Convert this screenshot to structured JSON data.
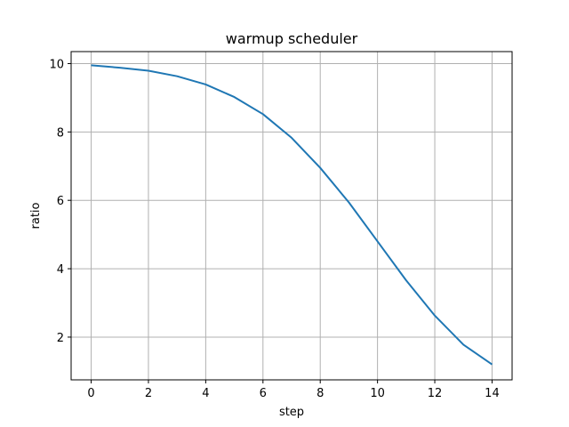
{
  "chart_data": {
    "type": "line",
    "title": "warmup scheduler",
    "xlabel": "step",
    "ylabel": "ratio",
    "xlim": [
      -0.7,
      14.7
    ],
    "ylim": [
      0.75,
      10.35
    ],
    "grid": true,
    "xticks": [
      0,
      2,
      4,
      6,
      8,
      10,
      12,
      14
    ],
    "yticks": [
      2,
      4,
      6,
      8,
      10
    ],
    "series": [
      {
        "color": "#1f77b4",
        "x": [
          0,
          1,
          2,
          3,
          4,
          5,
          6,
          7,
          8,
          9,
          10,
          11,
          12,
          13,
          14
        ],
        "y": [
          9.95,
          9.88,
          9.79,
          9.63,
          9.39,
          9.02,
          8.52,
          7.83,
          6.95,
          5.94,
          4.8,
          3.66,
          2.63,
          1.78,
          1.2
        ]
      }
    ]
  }
}
